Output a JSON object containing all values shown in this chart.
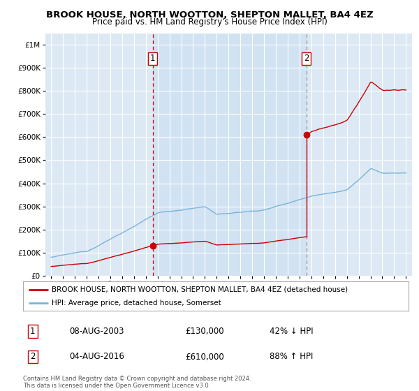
{
  "title": "BROOK HOUSE, NORTH WOOTTON, SHEPTON MALLET, BA4 4EZ",
  "subtitle": "Price paid vs. HM Land Registry's House Price Index (HPI)",
  "ytick_values": [
    0,
    100000,
    200000,
    300000,
    400000,
    500000,
    600000,
    700000,
    800000,
    900000,
    1000000
  ],
  "xlim": [
    1994.5,
    2025.5
  ],
  "ylim": [
    0,
    1050000
  ],
  "background_color": "#dce9f5",
  "outer_bg_color": "#ffffff",
  "hpi_line_color": "#7ab4d8",
  "price_line_color": "#cc0000",
  "sale1_x": 2003.58,
  "sale1_y": 130000,
  "sale2_x": 2016.58,
  "sale2_y": 610000,
  "vline_color": "#cc0000",
  "vline2_color": "#aaaaaa",
  "legend_label1": "BROOK HOUSE, NORTH WOOTTON, SHEPTON MALLET, BA4 4EZ (detached house)",
  "legend_label2": "HPI: Average price, detached house, Somerset",
  "table_row1": [
    "1",
    "08-AUG-2003",
    "£130,000",
    "42% ↓ HPI"
  ],
  "table_row2": [
    "2",
    "04-AUG-2016",
    "£610,000",
    "88% ↑ HPI"
  ],
  "footnote": "Contains HM Land Registry data © Crown copyright and database right 2024.\nThis data is licensed under the Open Government Licence v3.0.",
  "title_fontsize": 9.5,
  "subtitle_fontsize": 8.5,
  "tick_fontsize": 7.5,
  "legend_fontsize": 7.5,
  "table_fontsize": 8.5,
  "footnote_fontsize": 6.0
}
